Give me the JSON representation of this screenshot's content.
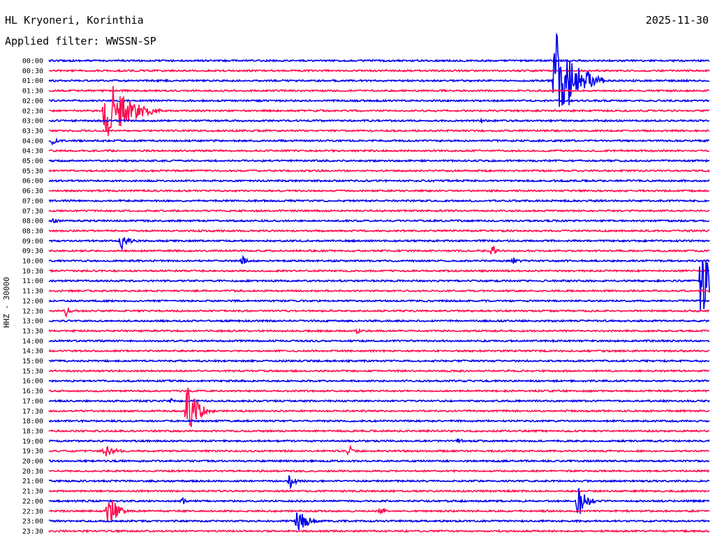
{
  "header": {
    "station": "HL Kryoneri, Korinthia",
    "date": "2025-11-30",
    "filter_text": "Applied filter: WWSSN-SP"
  },
  "axis": {
    "label": "HHZ - 30000"
  },
  "colors": {
    "trace_a": "#0000ee",
    "trace_b": "#ff1050"
  },
  "rows": [
    "00:00",
    "00:30",
    "01:00",
    "01:30",
    "02:00",
    "02:30",
    "03:00",
    "03:30",
    "04:00",
    "04:30",
    "05:00",
    "05:30",
    "06:00",
    "06:30",
    "07:00",
    "07:30",
    "08:00",
    "08:30",
    "09:00",
    "09:30",
    "10:00",
    "10:30",
    "11:00",
    "11:30",
    "12:00",
    "12:30",
    "13:00",
    "13:30",
    "14:00",
    "14:30",
    "15:00",
    "15:30",
    "16:00",
    "16:30",
    "17:00",
    "17:30",
    "18:00",
    "18:30",
    "19:00",
    "19:30",
    "20:00",
    "20:30",
    "21:00",
    "21:30",
    "22:00",
    "22:30",
    "23:00",
    "23:30"
  ]
}
